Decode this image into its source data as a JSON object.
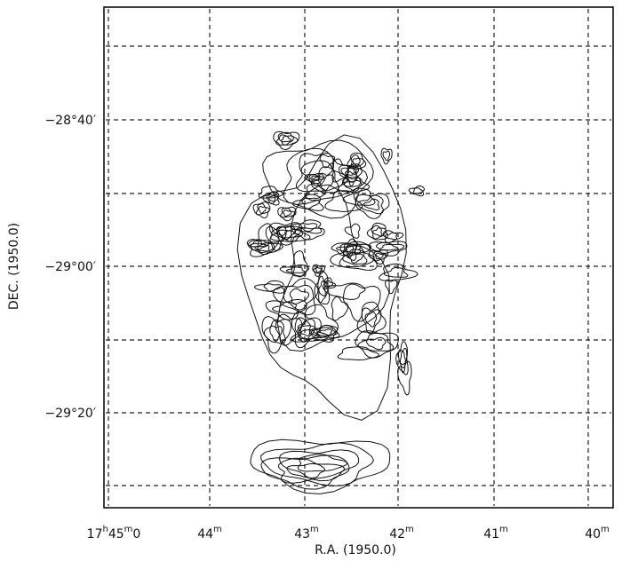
{
  "figure": {
    "x_label": "R.A. (1950.0)",
    "y_label": "DEC. (1950.0)",
    "x_ticks": [
      {
        "main": "17",
        "sup1": "h",
        "mid": "45",
        "sup2": "m",
        "tail": "0"
      },
      {
        "main": "44",
        "sup": "m"
      },
      {
        "main": "43",
        "sup": "m"
      },
      {
        "main": "42",
        "sup": "m"
      },
      {
        "main": "41",
        "sup": "m"
      },
      {
        "main": "40",
        "sup": "m"
      }
    ],
    "y_ticks": [
      "−28°40′",
      "−29°00′",
      "−29°20′"
    ]
  }
}
